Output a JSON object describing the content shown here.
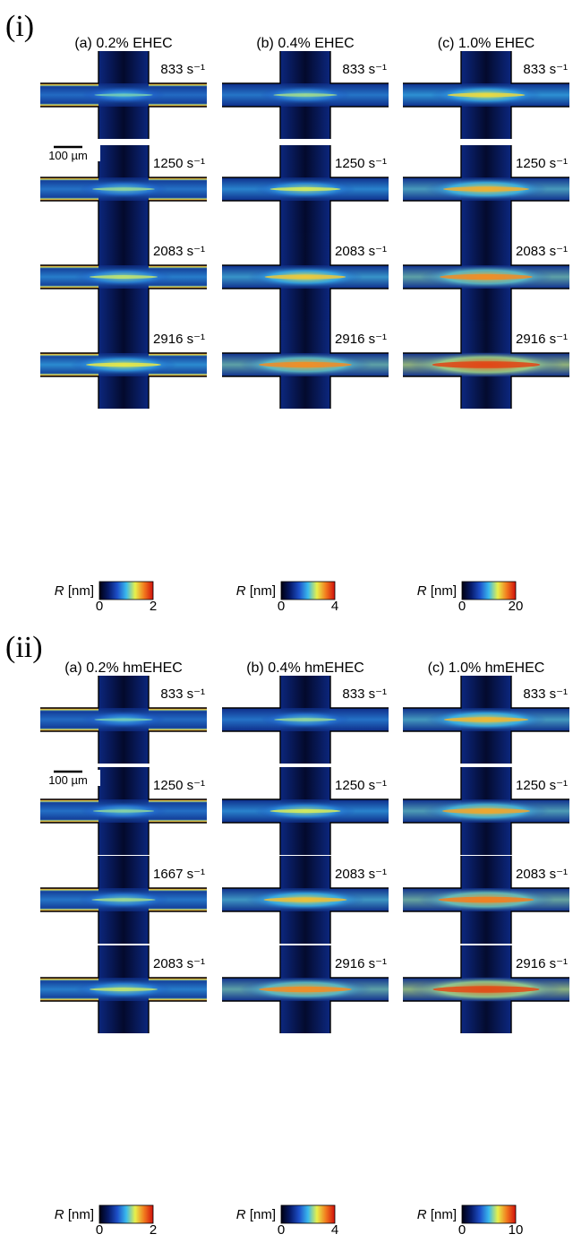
{
  "colormap": [
    "#000010",
    "#061a68",
    "#1d4fc8",
    "#39b9ee",
    "#e8f04a",
    "#f27a1e",
    "#d0100c"
  ],
  "sections": [
    {
      "label": "(i)",
      "scale_bar": "100 µm",
      "columns": [
        {
          "title": "(a) 0.2% EHEC",
          "rates": [
            "833 s⁻¹",
            "1250 s⁻¹",
            "2083 s⁻¹",
            "2916 s⁻¹"
          ],
          "intensity": [
            0.12,
            0.18,
            0.26,
            0.36
          ],
          "wall_artifacts": true,
          "colorbar": {
            "var": "R",
            "unit": "[nm]",
            "min": "0",
            "max": "2"
          }
        },
        {
          "title": "(b) 0.4% EHEC",
          "rates": [
            "833 s⁻¹",
            "1250 s⁻¹",
            "2083 s⁻¹",
            "2916 s⁻¹"
          ],
          "intensity": [
            0.2,
            0.3,
            0.45,
            0.62
          ],
          "wall_artifacts": false,
          "colorbar": {
            "var": "R",
            "unit": "[nm]",
            "min": "0",
            "max": "4"
          }
        },
        {
          "title": "(c) 1.0% EHEC",
          "rates": [
            "833 s⁻¹",
            "1250 s⁻¹",
            "2083 s⁻¹",
            "2916 s⁻¹"
          ],
          "intensity": [
            0.4,
            0.52,
            0.62,
            0.84
          ],
          "wall_artifacts": false,
          "colorbar": {
            "var": "R",
            "unit": "[nm]",
            "min": "0",
            "max": "20"
          }
        }
      ]
    },
    {
      "label": "(ii)",
      "scale_bar": "100 µm",
      "columns": [
        {
          "title": "(a) 0.2% hmEHEC",
          "rates": [
            "833 s⁻¹",
            "1250 s⁻¹",
            "1667 s⁻¹",
            "2083 s⁻¹"
          ],
          "intensity": [
            0.12,
            0.16,
            0.2,
            0.26
          ],
          "wall_artifacts": true,
          "colorbar": {
            "var": "R",
            "unit": "[nm]",
            "min": "0",
            "max": "2"
          }
        },
        {
          "title": "(b) 0.4% hmEHEC",
          "rates": [
            "833 s⁻¹",
            "1250 s⁻¹",
            "2083 s⁻¹",
            "2916 s⁻¹"
          ],
          "intensity": [
            0.18,
            0.3,
            0.48,
            0.62
          ],
          "wall_artifacts": false,
          "colorbar": {
            "var": "R",
            "unit": "[nm]",
            "min": "0",
            "max": "4"
          }
        },
        {
          "title": "(c) 1.0% hmEHEC",
          "rates": [
            "833 s⁻¹",
            "1250 s⁻¹",
            "2083 s⁻¹",
            "2916 s⁻¹"
          ],
          "intensity": [
            0.5,
            0.55,
            0.66,
            0.82
          ],
          "wall_artifacts": false,
          "colorbar": {
            "var": "R",
            "unit": "[nm]",
            "min": "0",
            "max": "10"
          }
        }
      ]
    }
  ]
}
